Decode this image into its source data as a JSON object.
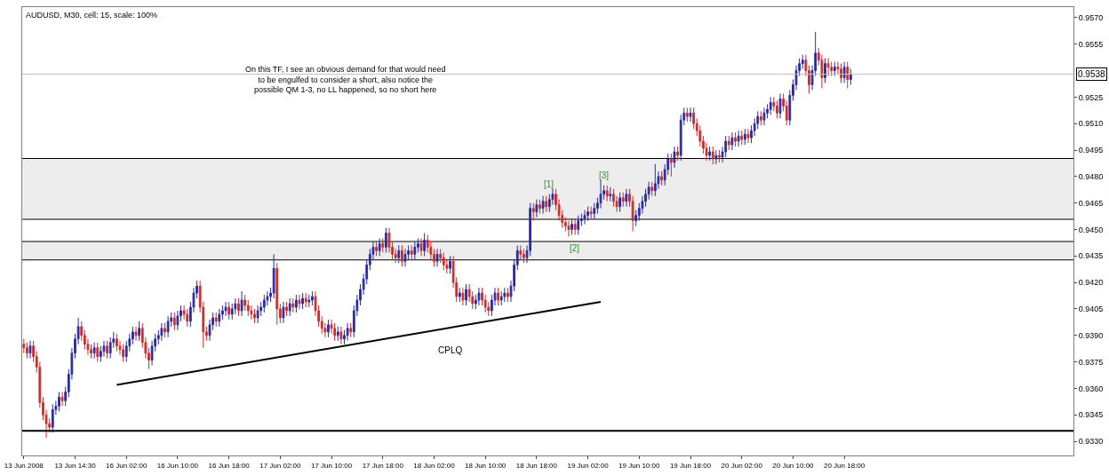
{
  "chart_data": {
    "type": "candlestick",
    "categories": [
      "13 Jun 2008",
      null,
      null,
      null,
      null,
      null,
      null,
      null,
      null,
      null,
      null,
      null,
      null,
      null,
      null,
      null,
      "13 Jun 14:30",
      null,
      null,
      null,
      null,
      null,
      null,
      null,
      null,
      null,
      null,
      null,
      null,
      null,
      null,
      null,
      "16 Jun 02:00",
      null,
      null,
      null,
      null,
      null,
      null,
      null,
      null,
      null,
      null,
      null,
      null,
      null,
      null,
      null,
      "16 Jun 10:00",
      null,
      null,
      null,
      null,
      null,
      null,
      null,
      null,
      null,
      null,
      null,
      null,
      null,
      null,
      null,
      "16 Jun 18:00",
      null,
      null,
      null,
      null,
      null,
      null,
      null,
      null,
      null,
      null,
      null,
      null,
      null,
      null,
      null,
      "17 Jun 02:00",
      null,
      null,
      null,
      null,
      null,
      null,
      null,
      null,
      null,
      null,
      null,
      null,
      null,
      null,
      null,
      "17 Jun 10:00",
      null,
      null,
      null,
      null,
      null,
      null,
      null,
      null,
      null,
      null,
      null,
      null,
      null,
      null,
      null,
      "17 Jun 18:00",
      null,
      null,
      null,
      null,
      null,
      null,
      null,
      null,
      null,
      null,
      null,
      null,
      null,
      null,
      null,
      "18 Jun 02:00",
      null,
      null,
      null,
      null,
      null,
      null,
      null,
      null,
      null,
      null,
      null,
      null,
      null,
      null,
      null,
      "18 Jun 10:00",
      null,
      null,
      null,
      null,
      null,
      null,
      null,
      null,
      null,
      null,
      null,
      null,
      null,
      null,
      null,
      "18 Jun 18:00",
      null,
      null,
      null,
      null,
      null,
      null,
      null,
      null,
      null,
      null,
      null,
      null,
      null,
      null,
      null,
      "19 Jun 02:00",
      null,
      null,
      null,
      null,
      null,
      null,
      null,
      null,
      null,
      null,
      null,
      null,
      null,
      null,
      null,
      "19 Jun 10:00",
      null,
      null,
      null,
      null,
      null,
      null,
      null,
      null,
      null,
      null,
      null,
      null,
      null,
      null,
      null,
      "19 Jun 18:00",
      null,
      null,
      null,
      null,
      null,
      null,
      null,
      null,
      null,
      null,
      null,
      null,
      null,
      null,
      null,
      "20 Jun 02:00",
      null,
      null,
      null,
      null,
      null,
      null,
      null,
      null,
      null,
      null,
      null,
      null,
      null,
      null,
      null,
      "20 Jun 10:00",
      null,
      null,
      null,
      null,
      null,
      null,
      null,
      null,
      null,
      null,
      null,
      null,
      null,
      null,
      null,
      "20 Jun 18:00",
      null,
      null,
      null,
      null,
      null,
      null,
      null,
      null,
      null,
      null,
      null,
      null,
      null,
      null,
      null,
      null,
      null,
      null,
      null,
      null,
      null,
      null,
      null,
      null,
      null,
      null,
      null,
      null,
      null,
      null,
      null,
      null,
      null,
      null,
      null,
      null,
      null,
      null,
      null,
      null,
      null,
      null,
      null,
      null,
      null,
      null,
      null,
      null,
      null,
      null,
      null,
      null,
      null,
      null,
      null,
      null,
      null,
      null,
      null,
      null,
      null,
      null,
      null,
      null,
      null,
      null,
      null,
      null,
      null,
      null,
      null
    ],
    "ohlc": [
      [
        0.9385,
        0.9388,
        0.938,
        0.9383
      ],
      [
        0.9383,
        0.9386,
        0.9377,
        0.938
      ],
      [
        0.938,
        0.9387,
        0.9377,
        0.9384
      ],
      [
        0.9384,
        0.9387,
        0.9375,
        0.9378
      ],
      [
        0.9378,
        0.9381,
        0.9369,
        0.9372
      ],
      [
        0.9372,
        0.9375,
        0.9349,
        0.9352
      ],
      [
        0.9352,
        0.9355,
        0.9342,
        0.9345
      ],
      [
        0.9345,
        0.9348,
        0.9332,
        0.934
      ],
      [
        0.934,
        0.9343,
        0.9335,
        0.9338
      ],
      [
        0.9338,
        0.9351,
        0.9335,
        0.9348
      ],
      [
        0.9348,
        0.9353,
        0.9345,
        0.935
      ],
      [
        0.935,
        0.9358,
        0.9347,
        0.9355
      ],
      [
        0.9355,
        0.9358,
        0.935,
        0.9353
      ],
      [
        0.9353,
        0.9361,
        0.935,
        0.9358
      ],
      [
        0.9358,
        0.9371,
        0.9355,
        0.9368
      ],
      [
        0.9368,
        0.9383,
        0.9365,
        0.938
      ],
      [
        0.938,
        0.9391,
        0.9377,
        0.9388
      ],
      [
        0.9388,
        0.94,
        0.9385,
        0.9395
      ],
      [
        0.9395,
        0.9398,
        0.9387,
        0.939
      ],
      [
        0.939,
        0.9393,
        0.9382,
        0.9385
      ],
      [
        0.9385,
        0.9388,
        0.9379,
        0.9382
      ],
      [
        0.9382,
        0.9385,
        0.9377,
        0.938
      ],
      [
        0.938,
        0.9386,
        0.9377,
        0.9383
      ],
      [
        0.9383,
        0.9386,
        0.9375,
        0.9378
      ],
      [
        0.9378,
        0.9384,
        0.9375,
        0.9381
      ],
      [
        0.9381,
        0.9387,
        0.9378,
        0.9384
      ],
      [
        0.9384,
        0.9387,
        0.9377,
        0.938
      ],
      [
        0.938,
        0.9389,
        0.9377,
        0.9386
      ],
      [
        0.9386,
        0.9392,
        0.9383,
        0.9388
      ],
      [
        0.9388,
        0.9391,
        0.9381,
        0.9384
      ],
      [
        0.9384,
        0.9387,
        0.9379,
        0.9382
      ],
      [
        0.9382,
        0.9385,
        0.9375,
        0.9378
      ],
      [
        0.9378,
        0.9387,
        0.9375,
        0.9384
      ],
      [
        0.9384,
        0.9391,
        0.9381,
        0.9388
      ],
      [
        0.9388,
        0.9395,
        0.9385,
        0.9392
      ],
      [
        0.9392,
        0.9395,
        0.9387,
        0.939
      ],
      [
        0.939,
        0.9398,
        0.9387,
        0.9394
      ],
      [
        0.9394,
        0.9397,
        0.9383,
        0.9386
      ],
      [
        0.9386,
        0.9389,
        0.9377,
        0.938
      ],
      [
        0.938,
        0.9383,
        0.9371,
        0.9376
      ],
      [
        0.9376,
        0.9387,
        0.9373,
        0.9384
      ],
      [
        0.9384,
        0.9391,
        0.9381,
        0.9388
      ],
      [
        0.9388,
        0.9393,
        0.9385,
        0.939
      ],
      [
        0.939,
        0.9397,
        0.9387,
        0.9394
      ],
      [
        0.9394,
        0.9397,
        0.9389,
        0.9392
      ],
      [
        0.9392,
        0.9401,
        0.9389,
        0.9398
      ],
      [
        0.9398,
        0.9403,
        0.9395,
        0.94
      ],
      [
        0.94,
        0.9403,
        0.9393,
        0.9396
      ],
      [
        0.9396,
        0.9404,
        0.9393,
        0.9401
      ],
      [
        0.9401,
        0.9407,
        0.9398,
        0.9404
      ],
      [
        0.9404,
        0.9407,
        0.9399,
        0.9402
      ],
      [
        0.9402,
        0.9405,
        0.9395,
        0.9398
      ],
      [
        0.9398,
        0.9409,
        0.9395,
        0.9406
      ],
      [
        0.9406,
        0.9417,
        0.9403,
        0.9414
      ],
      [
        0.9414,
        0.9421,
        0.9411,
        0.9418
      ],
      [
        0.9418,
        0.9421,
        0.9403,
        0.9406
      ],
      [
        0.9406,
        0.9409,
        0.9383,
        0.9392
      ],
      [
        0.9392,
        0.9395,
        0.9387,
        0.939
      ],
      [
        0.939,
        0.9399,
        0.9387,
        0.9396
      ],
      [
        0.9396,
        0.9403,
        0.9393,
        0.94
      ],
      [
        0.94,
        0.9403,
        0.9395,
        0.9398
      ],
      [
        0.9398,
        0.9405,
        0.9395,
        0.9402
      ],
      [
        0.9402,
        0.9407,
        0.9399,
        0.9404
      ],
      [
        0.9404,
        0.9409,
        0.9401,
        0.9406
      ],
      [
        0.9406,
        0.9409,
        0.9399,
        0.9402
      ],
      [
        0.9402,
        0.9408,
        0.9399,
        0.9405
      ],
      [
        0.9405,
        0.9411,
        0.9402,
        0.9408
      ],
      [
        0.9408,
        0.9411,
        0.9401,
        0.9404
      ],
      [
        0.9404,
        0.9415,
        0.9401,
        0.941
      ],
      [
        0.941,
        0.9413,
        0.9404,
        0.9407
      ],
      [
        0.9407,
        0.941,
        0.9401,
        0.9404
      ],
      [
        0.9404,
        0.9407,
        0.9399,
        0.9402
      ],
      [
        0.9402,
        0.9405,
        0.9397,
        0.94
      ],
      [
        0.94,
        0.9407,
        0.9397,
        0.9404
      ],
      [
        0.9404,
        0.9409,
        0.9401,
        0.9406
      ],
      [
        0.9406,
        0.9413,
        0.9403,
        0.941
      ],
      [
        0.941,
        0.9415,
        0.9407,
        0.9412
      ],
      [
        0.9412,
        0.9417,
        0.9409,
        0.9414
      ],
      [
        0.9414,
        0.9436,
        0.9411,
        0.9428
      ],
      [
        0.9428,
        0.9431,
        0.9396,
        0.9405
      ],
      [
        0.9405,
        0.9408,
        0.9397,
        0.94
      ],
      [
        0.94,
        0.9409,
        0.9397,
        0.9406
      ],
      [
        0.9406,
        0.9409,
        0.9401,
        0.9404
      ],
      [
        0.9404,
        0.9411,
        0.9401,
        0.9408
      ],
      [
        0.9408,
        0.9411,
        0.9403,
        0.9406
      ],
      [
        0.9406,
        0.9413,
        0.9403,
        0.941
      ],
      [
        0.941,
        0.9413,
        0.9405,
        0.9408
      ],
      [
        0.9408,
        0.9414,
        0.9405,
        0.9411
      ],
      [
        0.9411,
        0.9414,
        0.9406,
        0.9409
      ],
      [
        0.9409,
        0.9413,
        0.9406,
        0.941
      ],
      [
        0.941,
        0.9415,
        0.9407,
        0.9412
      ],
      [
        0.9412,
        0.9415,
        0.9401,
        0.9404
      ],
      [
        0.9404,
        0.9407,
        0.9395,
        0.9398
      ],
      [
        0.9398,
        0.9401,
        0.9391,
        0.9394
      ],
      [
        0.9394,
        0.9397,
        0.9389,
        0.9392
      ],
      [
        0.9392,
        0.9399,
        0.9389,
        0.9396
      ],
      [
        0.9396,
        0.9399,
        0.9391,
        0.9394
      ],
      [
        0.9394,
        0.9397,
        0.9387,
        0.939
      ],
      [
        0.939,
        0.9395,
        0.9387,
        0.9392
      ],
      [
        0.9392,
        0.9395,
        0.9385,
        0.9388
      ],
      [
        0.9388,
        0.9393,
        0.9385,
        0.939
      ],
      [
        0.939,
        0.9397,
        0.9387,
        0.9394
      ],
      [
        0.9394,
        0.9397,
        0.9389,
        0.9392
      ],
      [
        0.9392,
        0.9407,
        0.9389,
        0.9404
      ],
      [
        0.9404,
        0.9413,
        0.9401,
        0.941
      ],
      [
        0.941,
        0.9419,
        0.9407,
        0.9416
      ],
      [
        0.9416,
        0.9425,
        0.9413,
        0.9422
      ],
      [
        0.9422,
        0.9433,
        0.9419,
        0.943
      ],
      [
        0.943,
        0.9439,
        0.9427,
        0.9436
      ],
      [
        0.9436,
        0.9443,
        0.9433,
        0.944
      ],
      [
        0.944,
        0.9443,
        0.9435,
        0.9438
      ],
      [
        0.9438,
        0.9445,
        0.9435,
        0.9442
      ],
      [
        0.9442,
        0.9445,
        0.9437,
        0.944
      ],
      [
        0.944,
        0.9451,
        0.9437,
        0.9448
      ],
      [
        0.9448,
        0.9451,
        0.9437,
        0.944
      ],
      [
        0.944,
        0.9443,
        0.9433,
        0.9436
      ],
      [
        0.9436,
        0.9439,
        0.9431,
        0.9434
      ],
      [
        0.9434,
        0.9441,
        0.9431,
        0.9438
      ],
      [
        0.9438,
        0.9441,
        0.9429,
        0.9432
      ],
      [
        0.9432,
        0.9439,
        0.9429,
        0.9436
      ],
      [
        0.9436,
        0.9441,
        0.9433,
        0.9438
      ],
      [
        0.9438,
        0.9441,
        0.9433,
        0.9436
      ],
      [
        0.9436,
        0.9443,
        0.9433,
        0.944
      ],
      [
        0.944,
        0.9445,
        0.9437,
        0.9442
      ],
      [
        0.9442,
        0.9445,
        0.9435,
        0.9438
      ],
      [
        0.9438,
        0.9448,
        0.9435,
        0.9444
      ],
      [
        0.9444,
        0.9447,
        0.9437,
        0.944
      ],
      [
        0.944,
        0.9443,
        0.9433,
        0.9436
      ],
      [
        0.9436,
        0.9439,
        0.9429,
        0.9432
      ],
      [
        0.9432,
        0.9439,
        0.9429,
        0.9436
      ],
      [
        0.9436,
        0.9439,
        0.9431,
        0.9434
      ],
      [
        0.9434,
        0.9437,
        0.9427,
        0.943
      ],
      [
        0.943,
        0.9433,
        0.9425,
        0.9428
      ],
      [
        0.9428,
        0.9435,
        0.9425,
        0.9432
      ],
      [
        0.9432,
        0.9435,
        0.9417,
        0.942
      ],
      [
        0.942,
        0.9423,
        0.9409,
        0.9412
      ],
      [
        0.9412,
        0.9417,
        0.9409,
        0.9414
      ],
      [
        0.9414,
        0.9417,
        0.9407,
        0.941
      ],
      [
        0.941,
        0.9419,
        0.9407,
        0.9416
      ],
      [
        0.9416,
        0.9419,
        0.9409,
        0.9412
      ],
      [
        0.9412,
        0.9415,
        0.9405,
        0.9408
      ],
      [
        0.9408,
        0.9413,
        0.9405,
        0.941
      ],
      [
        0.941,
        0.9417,
        0.9407,
        0.9414
      ],
      [
        0.9414,
        0.9417,
        0.9407,
        0.941
      ],
      [
        0.941,
        0.9413,
        0.9403,
        0.9406
      ],
      [
        0.9406,
        0.9409,
        0.9401,
        0.9404
      ],
      [
        0.9404,
        0.9413,
        0.9401,
        0.941
      ],
      [
        0.941,
        0.9417,
        0.9407,
        0.9414
      ],
      [
        0.9414,
        0.9417,
        0.9407,
        0.941
      ],
      [
        0.941,
        0.9415,
        0.9407,
        0.9412
      ],
      [
        0.9412,
        0.9417,
        0.9409,
        0.9414
      ],
      [
        0.9414,
        0.9417,
        0.9409,
        0.9412
      ],
      [
        0.9412,
        0.9421,
        0.9409,
        0.9418
      ],
      [
        0.9418,
        0.9433,
        0.9415,
        0.943
      ],
      [
        0.943,
        0.9441,
        0.9427,
        0.9438
      ],
      [
        0.9438,
        0.9441,
        0.9433,
        0.9436
      ],
      [
        0.9436,
        0.9439,
        0.9431,
        0.9434
      ],
      [
        0.9434,
        0.9441,
        0.9431,
        0.9438
      ],
      [
        0.9438,
        0.9465,
        0.9435,
        0.9462
      ],
      [
        0.9462,
        0.9465,
        0.9455,
        0.946
      ],
      [
        0.946,
        0.9467,
        0.9457,
        0.9464
      ],
      [
        0.9464,
        0.9467,
        0.9459,
        0.9462
      ],
      [
        0.9462,
        0.9469,
        0.9459,
        0.9466
      ],
      [
        0.9466,
        0.9469,
        0.946,
        0.9463
      ],
      [
        0.9463,
        0.947,
        0.946,
        0.9467
      ],
      [
        0.9467,
        0.9473,
        0.9464,
        0.947
      ],
      [
        0.947,
        0.9473,
        0.9461,
        0.9464
      ],
      [
        0.9464,
        0.9467,
        0.9455,
        0.9458
      ],
      [
        0.9458,
        0.9461,
        0.9451,
        0.9454
      ],
      [
        0.9454,
        0.9457,
        0.9449,
        0.9452
      ],
      [
        0.9452,
        0.9455,
        0.9446,
        0.945
      ],
      [
        0.945,
        0.9456,
        0.9447,
        0.9453
      ],
      [
        0.9453,
        0.9456,
        0.9447,
        0.945
      ],
      [
        0.945,
        0.9458,
        0.9447,
        0.9455
      ],
      [
        0.9455,
        0.9459,
        0.9452,
        0.9456
      ],
      [
        0.9456,
        0.9461,
        0.9453,
        0.9458
      ],
      [
        0.9458,
        0.9463,
        0.9455,
        0.946
      ],
      [
        0.946,
        0.9463,
        0.9456,
        0.9459
      ],
      [
        0.9459,
        0.9465,
        0.9456,
        0.9462
      ],
      [
        0.9462,
        0.9468,
        0.9459,
        0.9465
      ],
      [
        0.9465,
        0.9478,
        0.9462,
        0.947
      ],
      [
        0.947,
        0.9475,
        0.9467,
        0.9472
      ],
      [
        0.9472,
        0.9475,
        0.9466,
        0.9469
      ],
      [
        0.9469,
        0.9474,
        0.9466,
        0.947
      ],
      [
        0.947,
        0.9473,
        0.9463,
        0.9466
      ],
      [
        0.9466,
        0.9469,
        0.946,
        0.9463
      ],
      [
        0.9463,
        0.9471,
        0.946,
        0.9468
      ],
      [
        0.9468,
        0.9471,
        0.9463,
        0.9466
      ],
      [
        0.9466,
        0.9473,
        0.9463,
        0.947
      ],
      [
        0.947,
        0.9473,
        0.9463,
        0.9466
      ],
      [
        0.9466,
        0.9469,
        0.9449,
        0.9455
      ],
      [
        0.9455,
        0.9461,
        0.9452,
        0.9458
      ],
      [
        0.9458,
        0.9465,
        0.9455,
        0.9462
      ],
      [
        0.9462,
        0.9469,
        0.9459,
        0.9466
      ],
      [
        0.9466,
        0.9473,
        0.9463,
        0.947
      ],
      [
        0.947,
        0.9477,
        0.9467,
        0.9474
      ],
      [
        0.9474,
        0.9477,
        0.9469,
        0.9472
      ],
      [
        0.9472,
        0.9487,
        0.9469,
        0.9476
      ],
      [
        0.9476,
        0.9483,
        0.9473,
        0.948
      ],
      [
        0.948,
        0.9483,
        0.9475,
        0.9478
      ],
      [
        0.9478,
        0.9487,
        0.9475,
        0.9484
      ],
      [
        0.9484,
        0.9493,
        0.9481,
        0.949
      ],
      [
        0.949,
        0.9493,
        0.948,
        0.9488
      ],
      [
        0.9488,
        0.9497,
        0.9485,
        0.9494
      ],
      [
        0.9494,
        0.9497,
        0.9489,
        0.9492
      ],
      [
        0.9492,
        0.9515,
        0.9489,
        0.9512
      ],
      [
        0.9512,
        0.9519,
        0.9509,
        0.9516
      ],
      [
        0.9516,
        0.9519,
        0.9511,
        0.9514
      ],
      [
        0.9514,
        0.9519,
        0.9511,
        0.9516
      ],
      [
        0.9516,
        0.9519,
        0.9507,
        0.951
      ],
      [
        0.951,
        0.9513,
        0.9503,
        0.9506
      ],
      [
        0.9506,
        0.9509,
        0.9497,
        0.95
      ],
      [
        0.95,
        0.9503,
        0.9493,
        0.9496
      ],
      [
        0.9496,
        0.9499,
        0.9489,
        0.9492
      ],
      [
        0.9492,
        0.9497,
        0.9489,
        0.9494
      ],
      [
        0.9494,
        0.9497,
        0.9487,
        0.949
      ],
      [
        0.949,
        0.9495,
        0.9487,
        0.9492
      ],
      [
        0.9492,
        0.9495,
        0.9488,
        0.9491
      ],
      [
        0.9491,
        0.9497,
        0.9488,
        0.9494
      ],
      [
        0.9494,
        0.9503,
        0.9491,
        0.95
      ],
      [
        0.95,
        0.9503,
        0.9495,
        0.9498
      ],
      [
        0.9498,
        0.9505,
        0.9495,
        0.9502
      ],
      [
        0.9502,
        0.9505,
        0.9497,
        0.95
      ],
      [
        0.95,
        0.9506,
        0.9497,
        0.9503
      ],
      [
        0.9503,
        0.9506,
        0.9498,
        0.9501
      ],
      [
        0.9501,
        0.9507,
        0.9498,
        0.9504
      ],
      [
        0.9504,
        0.9507,
        0.9499,
        0.9502
      ],
      [
        0.9502,
        0.9509,
        0.9499,
        0.9506
      ],
      [
        0.9506,
        0.9513,
        0.9503,
        0.951
      ],
      [
        0.951,
        0.9517,
        0.9507,
        0.9514
      ],
      [
        0.9514,
        0.9517,
        0.9509,
        0.9512
      ],
      [
        0.9512,
        0.9519,
        0.9509,
        0.9516
      ],
      [
        0.9516,
        0.9521,
        0.9513,
        0.9518
      ],
      [
        0.9518,
        0.9525,
        0.9515,
        0.9522
      ],
      [
        0.9522,
        0.9525,
        0.9517,
        0.952
      ],
      [
        0.952,
        0.9523,
        0.9513,
        0.9516
      ],
      [
        0.9516,
        0.9527,
        0.9513,
        0.9524
      ],
      [
        0.9524,
        0.9527,
        0.9517,
        0.952
      ],
      [
        0.952,
        0.9523,
        0.9509,
        0.9512
      ],
      [
        0.9512,
        0.9529,
        0.9509,
        0.9526
      ],
      [
        0.9526,
        0.9535,
        0.9523,
        0.9532
      ],
      [
        0.9532,
        0.9543,
        0.9529,
        0.954
      ],
      [
        0.954,
        0.9547,
        0.9537,
        0.9544
      ],
      [
        0.9544,
        0.9549,
        0.9541,
        0.9546
      ],
      [
        0.9546,
        0.9549,
        0.9537,
        0.954
      ],
      [
        0.954,
        0.9543,
        0.9527,
        0.9532
      ],
      [
        0.9532,
        0.9543,
        0.9529,
        0.954
      ],
      [
        0.954,
        0.9562,
        0.9537,
        0.955
      ],
      [
        0.955,
        0.9553,
        0.9543,
        0.9546
      ],
      [
        0.9546,
        0.9549,
        0.953,
        0.9536
      ],
      [
        0.9536,
        0.9547,
        0.9533,
        0.9544
      ],
      [
        0.9544,
        0.9547,
        0.9537,
        0.9542
      ],
      [
        0.9542,
        0.9545,
        0.9537,
        0.954
      ],
      [
        0.954,
        0.9545,
        0.9537,
        0.9542
      ],
      [
        0.9542,
        0.9545,
        0.9538,
        0.9541
      ],
      [
        0.9541,
        0.9544,
        0.9533,
        0.9536
      ],
      [
        0.9536,
        0.9545,
        0.9533,
        0.9542
      ],
      [
        0.9542,
        0.9545,
        0.953,
        0.9535
      ],
      [
        0.9535,
        0.9541,
        0.9532,
        0.9538
      ],
      null,
      null,
      null,
      null,
      null,
      null,
      null,
      null,
      null,
      null,
      null,
      null,
      null,
      null,
      null,
      null,
      null,
      null,
      null,
      null,
      null,
      null,
      null,
      null,
      null,
      null,
      null,
      null,
      null,
      null,
      null,
      null,
      null,
      null,
      null,
      null,
      null,
      null,
      null,
      null,
      null,
      null,
      null,
      null,
      null,
      null,
      null,
      null,
      null,
      null,
      null,
      null,
      null,
      null,
      null,
      null,
      null,
      null,
      null,
      null,
      null,
      null,
      null,
      null,
      null,
      null,
      null,
      null,
      null
    ],
    "colors": [
      "#d42a2a",
      "#d42a2a",
      "#2a2aa8",
      "#d42a2a",
      "#d42a2a",
      "#d42a2a",
      "#d42a2a",
      "#d42a2a",
      "#d42a2a",
      "#2a2aa8",
      "#2a2aa8",
      "#2a2aa8",
      "#d42a2a",
      "#2a2aa8",
      "#2a2aa8",
      "#2a2aa8",
      "#2a2aa8",
      "#2a2aa8",
      "#d42a2a",
      "#d42a2a",
      "#d42a2a",
      "#d42a2a",
      "#2a2aa8",
      "#d42a2a",
      "#2a2aa8",
      "#2a2aa8",
      "#d42a2a",
      "#2a2aa8",
      "#2a2aa8",
      "#d42a2a",
      "#d42a2a",
      "#d42a2a",
      "#2a2aa8",
      "#2a2aa8",
      "#2a2aa8",
      "#d42a2a",
      "#2a2aa8",
      "#d42a2a",
      "#d42a2a",
      "#d42a2a",
      "#2a2aa8",
      "#2a2aa8",
      "#2a2aa8",
      "#2a2aa8",
      "#d42a2a",
      "#2a2aa8",
      "#2a2aa8",
      "#d42a2a",
      "#2a2aa8",
      "#2a2aa8",
      "#d42a2a",
      "#d42a2a",
      "#2a2aa8",
      "#2a2aa8",
      "#2a2aa8",
      "#d42a2a",
      "#d42a2a",
      "#d42a2a",
      "#2a2aa8",
      "#2a2aa8",
      "#d42a2a",
      "#2a2aa8",
      "#2a2aa8",
      "#2a2aa8",
      "#d42a2a",
      "#2a2aa8",
      "#2a2aa8",
      "#d42a2a",
      "#2a2aa8",
      "#d42a2a",
      "#d42a2a",
      "#d42a2a",
      "#d42a2a",
      "#2a2aa8",
      "#2a2aa8",
      "#2a2aa8",
      "#2a2aa8",
      "#2a2aa8",
      "#2a2aa8",
      "#d42a2a",
      "#d42a2a",
      "#2a2aa8",
      "#d42a2a",
      "#2a2aa8",
      "#d42a2a",
      "#2a2aa8",
      "#d42a2a",
      "#2a2aa8",
      "#d42a2a",
      "#2a2aa8",
      "#2a2aa8",
      "#d42a2a",
      "#d42a2a",
      "#d42a2a",
      "#d42a2a",
      "#2a2aa8",
      "#d42a2a",
      "#d42a2a",
      "#2a2aa8",
      "#d42a2a",
      "#2a2aa8",
      "#2a2aa8",
      "#d42a2a",
      "#2a2aa8",
      "#2a2aa8",
      "#2a2aa8",
      "#2a2aa8",
      "#2a2aa8",
      "#2a2aa8",
      "#2a2aa8",
      "#d42a2a",
      "#2a2aa8",
      "#d42a2a",
      "#2a2aa8",
      "#d42a2a",
      "#d42a2a",
      "#d42a2a",
      "#2a2aa8",
      "#d42a2a",
      "#2a2aa8",
      "#2a2aa8",
      "#d42a2a",
      "#2a2aa8",
      "#2a2aa8",
      "#d42a2a",
      "#2a2aa8",
      "#d42a2a",
      "#d42a2a",
      "#d42a2a",
      "#2a2aa8",
      "#d42a2a",
      "#d42a2a",
      "#d42a2a",
      "#2a2aa8",
      "#d42a2a",
      "#d42a2a",
      "#2a2aa8",
      "#d42a2a",
      "#2a2aa8",
      "#d42a2a",
      "#d42a2a",
      "#2a2aa8",
      "#2a2aa8",
      "#d42a2a",
      "#d42a2a",
      "#d42a2a",
      "#2a2aa8",
      "#2a2aa8",
      "#d42a2a",
      "#2a2aa8",
      "#2a2aa8",
      "#d42a2a",
      "#2a2aa8",
      "#2a2aa8",
      "#2a2aa8",
      "#d42a2a",
      "#d42a2a",
      "#2a2aa8",
      "#2a2aa8",
      "#d42a2a",
      "#2a2aa8",
      "#d42a2a",
      "#2a2aa8",
      "#d42a2a",
      "#2a2aa8",
      "#2a2aa8",
      "#d42a2a",
      "#d42a2a",
      "#d42a2a",
      "#d42a2a",
      "#d42a2a",
      "#2a2aa8",
      "#d42a2a",
      "#2a2aa8",
      "#2a2aa8",
      "#2a2aa8",
      "#2a2aa8",
      "#d42a2a",
      "#2a2aa8",
      "#2a2aa8",
      "#2a2aa8",
      "#2a2aa8",
      "#d42a2a",
      "#2a2aa8",
      "#d42a2a",
      "#d42a2a",
      "#2a2aa8",
      "#d42a2a",
      "#2a2aa8",
      "#d42a2a",
      "#d42a2a",
      "#2a2aa8",
      "#2a2aa8",
      "#2a2aa8",
      "#2a2aa8",
      "#2a2aa8",
      "#d42a2a",
      "#2a2aa8",
      "#2a2aa8",
      "#d42a2a",
      "#2a2aa8",
      "#2a2aa8",
      "#d42a2a",
      "#2a2aa8",
      "#d42a2a",
      "#2a2aa8",
      "#2a2aa8",
      "#d42a2a",
      "#2a2aa8",
      "#d42a2a",
      "#d42a2a",
      "#d42a2a",
      "#d42a2a",
      "#d42a2a",
      "#2a2aa8",
      "#d42a2a",
      "#2a2aa8",
      "#d42a2a",
      "#2a2aa8",
      "#2a2aa8",
      "#d42a2a",
      "#2a2aa8",
      "#d42a2a",
      "#2a2aa8",
      "#d42a2a",
      "#2a2aa8",
      "#d42a2a",
      "#2a2aa8",
      "#2a2aa8",
      "#2a2aa8",
      "#d42a2a",
      "#2a2aa8",
      "#2a2aa8",
      "#2a2aa8",
      "#d42a2a",
      "#d42a2a",
      "#2a2aa8",
      "#d42a2a",
      "#d42a2a",
      "#2a2aa8",
      "#2a2aa8",
      "#2a2aa8",
      "#2a2aa8",
      "#2a2aa8",
      "#d42a2a",
      "#d42a2a",
      "#2a2aa8",
      "#2a2aa8",
      "#d42a2a",
      "#d42a2a",
      "#2a2aa8",
      "#d42a2a",
      "#d42a2a",
      "#2a2aa8",
      "#d42a2a",
      "#d42a2a",
      "#2a2aa8",
      "#d42a2a",
      "#2a2aa8",
      null,
      null,
      null,
      null,
      null,
      null,
      null,
      null,
      null,
      null,
      null,
      null,
      null,
      null,
      null,
      null,
      null,
      null,
      null,
      null,
      null,
      null,
      null,
      null,
      null,
      null,
      null,
      null,
      null,
      null,
      null,
      null,
      null,
      null,
      null,
      null,
      null,
      null,
      null,
      null,
      null,
      null,
      null,
      null,
      null,
      null,
      null,
      null,
      null,
      null,
      null,
      null,
      null,
      null,
      null,
      null,
      null,
      null,
      null,
      null,
      null,
      null,
      null,
      null,
      null,
      null,
      null,
      null,
      null
    ],
    "series": [
      {
        "type": "line",
        "color": "#000000",
        "values": [
          null,
          null,
          null,
          null,
          null,
          null,
          null,
          null,
          null,
          null,
          null,
          null,
          null,
          null,
          null,
          null,
          null,
          null,
          null,
          null,
          null,
          null,
          null,
          null,
          null,
          null,
          null,
          null,
          null,
          0.9362,
          null,
          null,
          null,
          null,
          null,
          null,
          null,
          null,
          null,
          null,
          null,
          null,
          null,
          null,
          null,
          null,
          null,
          null,
          null,
          null,
          null,
          null,
          null,
          null,
          null,
          null,
          null,
          null,
          null,
          null,
          null,
          null,
          null,
          null,
          null,
          null,
          null,
          null,
          null,
          null,
          null,
          null,
          null,
          null,
          null,
          null,
          null,
          null,
          null,
          null,
          null,
          null,
          null,
          null,
          null,
          null,
          null,
          null,
          null,
          null,
          null,
          null,
          null,
          null,
          null,
          null,
          null,
          null,
          null,
          null,
          null,
          null,
          null,
          null,
          null,
          null,
          null,
          null,
          null,
          null,
          null,
          null,
          null,
          null,
          null,
          null,
          null,
          null,
          null,
          null,
          null,
          null,
          null,
          null,
          null,
          null,
          null,
          null,
          null,
          null,
          null,
          null,
          null,
          null,
          null,
          null,
          null,
          null,
          null,
          null,
          null,
          null,
          null,
          null,
          null,
          null,
          null,
          null,
          null,
          null,
          null,
          null,
          null,
          null,
          null,
          null,
          null,
          null,
          null,
          null,
          null,
          null,
          null,
          null,
          null,
          null,
          null,
          null,
          null,
          null,
          null,
          null,
          null,
          null,
          null,
          null,
          null,
          null,
          null,
          null,
          0.9409,
          null,
          null,
          null,
          null,
          null,
          null,
          null,
          null,
          null,
          null,
          null,
          null,
          null,
          null,
          null,
          null,
          null,
          null,
          null,
          null,
          null,
          null,
          null,
          null,
          null,
          null,
          null,
          null,
          null,
          null,
          null,
          null,
          null,
          null,
          null,
          null,
          null,
          null,
          null,
          null,
          null,
          null,
          null,
          null,
          null,
          null,
          null,
          null,
          null,
          null,
          null,
          null,
          null,
          null,
          null,
          null,
          null,
          null,
          null,
          null,
          null,
          null,
          null,
          null,
          null,
          null,
          null,
          null,
          null,
          null,
          null,
          null,
          null,
          null,
          null,
          null,
          null,
          null,
          null,
          null,
          null,
          null,
          null,
          null,
          null,
          null,
          null,
          null,
          null,
          null,
          null,
          null,
          null,
          null,
          null,
          null,
          null,
          null,
          null,
          null,
          null,
          null,
          null,
          null,
          null,
          null,
          null,
          null,
          null,
          null,
          null,
          null,
          null,
          null,
          null,
          null,
          null,
          null,
          null,
          null,
          null,
          null,
          null,
          null,
          null,
          null,
          null,
          null,
          null,
          null,
          null,
          null,
          null,
          null,
          null,
          null,
          null,
          null,
          null,
          null,
          null,
          null,
          null,
          null,
          null,
          null,
          null
        ]
      }
    ],
    "bands": [
      {
        "axis": "y",
        "from": 0.9456,
        "to": 0.949,
        "color": "#000000"
      },
      {
        "axis": "y",
        "from": 0.9433,
        "to": 0.9443,
        "color": "#000000"
      }
    ],
    "ylim": [
      0.9322,
      0.9576
    ],
    "yticks": [
      {
        "value": 0.933,
        "label": "0.9330"
      },
      {
        "value": 0.9345,
        "label": "0.9345"
      },
      {
        "value": 0.936,
        "label": "0.9360"
      },
      {
        "value": 0.9375,
        "label": "0.9375"
      },
      {
        "value": 0.939,
        "label": "0.9390"
      },
      {
        "value": 0.9405,
        "label": "0.9405"
      },
      {
        "value": 0.942,
        "label": "0.9420"
      },
      {
        "value": 0.9435,
        "label": "0.9435"
      },
      {
        "value": 0.945,
        "label": "0.9450"
      },
      {
        "value": 0.9465,
        "label": "0.9465"
      },
      {
        "value": 0.948,
        "label": "0.9480"
      },
      {
        "value": 0.9495,
        "label": "0.9495"
      },
      {
        "value": 0.951,
        "label": "0.9510"
      },
      {
        "value": 0.9525,
        "label": "0.9525"
      },
      {
        "value": 0.9555,
        "label": "0.9555"
      },
      {
        "value": 0.957,
        "label": "0.9570"
      }
    ],
    "ref_lines": [
      {
        "axis": "y",
        "value": 0.9538,
        "label": "0.9538",
        "color": "#c0c0c0"
      },
      {
        "axis": "y",
        "value": 0.9336,
        "color": "#000000"
      }
    ],
    "annotations": [
      "AUDUSD, M30, cell: 15, scale: 100%",
      "On this TF, I see an obvious demand for that would need\nto be engulfed to consider a short, also notice the\npossible QM 1-3, no LL happened, so no short here",
      "CPLQ",
      "[1]",
      "[3]",
      "[2]"
    ],
    "grid": false
  }
}
